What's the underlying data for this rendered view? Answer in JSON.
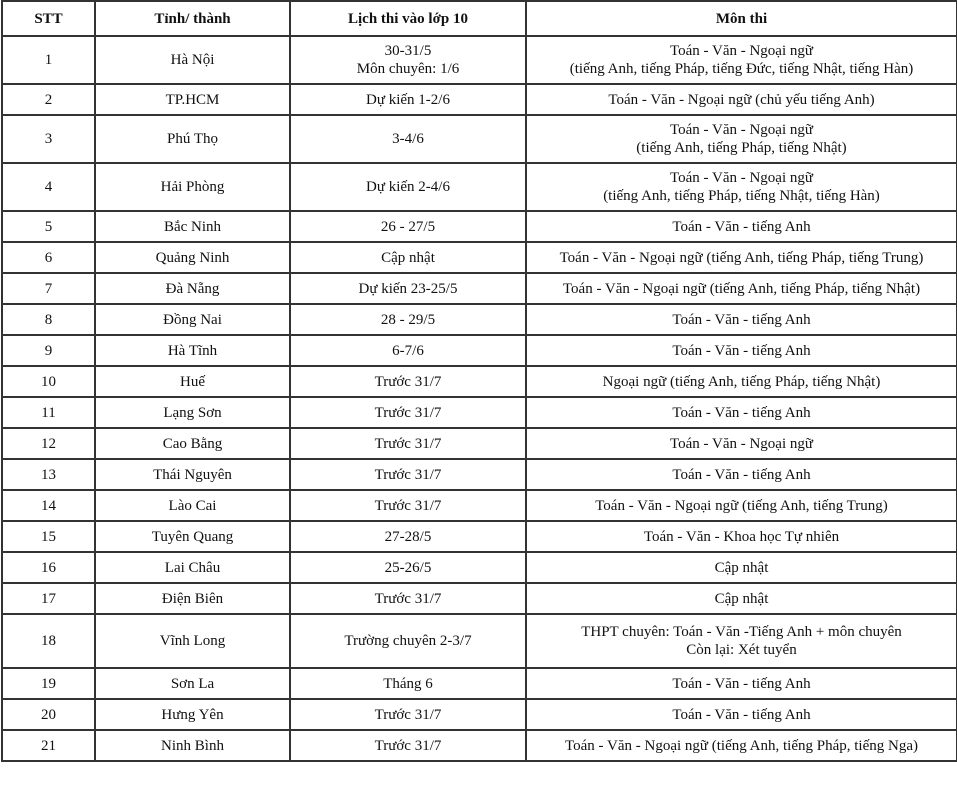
{
  "headers": [
    "STT",
    "Tỉnh/ thành",
    "Lịch thi vào lớp 10",
    "Môn thi"
  ],
  "rows": [
    {
      "stt": "1",
      "province": "Hà Nội",
      "schedule": [
        "30-31/5",
        "Môn chuyên: 1/6"
      ],
      "subjects": [
        "Toán - Văn - Ngoại ngữ",
        "(tiếng Anh, tiếng Pháp, tiếng Đức, tiếng Nhật, tiếng Hàn)"
      ]
    },
    {
      "stt": "2",
      "province": "TP.HCM",
      "schedule": [
        "Dự kiến 1-2/6"
      ],
      "subjects": [
        "Toán - Văn - Ngoại ngữ (chủ yếu tiếng Anh)"
      ]
    },
    {
      "stt": "3",
      "province": "Phú Thọ",
      "schedule": [
        "3-4/6"
      ],
      "subjects": [
        "Toán - Văn - Ngoại ngữ",
        "(tiếng Anh, tiếng Pháp, tiếng Nhật)"
      ]
    },
    {
      "stt": "4",
      "province": "Hải Phòng",
      "schedule": [
        "Dự kiến 2-4/6"
      ],
      "subjects": [
        "Toán - Văn - Ngoại ngữ",
        "(tiếng Anh, tiếng Pháp, tiếng Nhật, tiếng Hàn)"
      ]
    },
    {
      "stt": "5",
      "province": "Bắc Ninh",
      "schedule": [
        "26 - 27/5"
      ],
      "subjects": [
        "Toán - Văn - tiếng Anh"
      ]
    },
    {
      "stt": "6",
      "province": "Quảng Ninh",
      "schedule": [
        "Cập nhật"
      ],
      "subjects": [
        "Toán - Văn - Ngoại ngữ (tiếng Anh, tiếng Pháp, tiếng Trung)"
      ]
    },
    {
      "stt": "7",
      "province": "Đà Nẵng",
      "schedule": [
        "Dự kiến 23-25/5"
      ],
      "subjects": [
        "Toán - Văn - Ngoại ngữ (tiếng Anh, tiếng Pháp, tiếng Nhật)"
      ]
    },
    {
      "stt": "8",
      "province": "Đồng Nai",
      "schedule": [
        "28 - 29/5"
      ],
      "subjects": [
        "Toán - Văn - tiếng Anh"
      ]
    },
    {
      "stt": "9",
      "province": "Hà Tĩnh",
      "schedule": [
        "6-7/6"
      ],
      "subjects": [
        "Toán - Văn - tiếng Anh"
      ]
    },
    {
      "stt": "10",
      "province": "Huế",
      "schedule": [
        "Trước 31/7"
      ],
      "subjects": [
        "Ngoại ngữ (tiếng Anh, tiếng Pháp, tiếng Nhật)"
      ]
    },
    {
      "stt": "11",
      "province": "Lạng Sơn",
      "schedule": [
        "Trước 31/7"
      ],
      "subjects": [
        "Toán - Văn - tiếng Anh"
      ]
    },
    {
      "stt": "12",
      "province": "Cao Bằng",
      "schedule": [
        "Trước 31/7"
      ],
      "subjects": [
        "Toán - Văn - Ngoại ngữ"
      ]
    },
    {
      "stt": "13",
      "province": "Thái Nguyên",
      "schedule": [
        "Trước 31/7"
      ],
      "subjects": [
        "Toán - Văn - tiếng Anh"
      ]
    },
    {
      "stt": "14",
      "province": "Lào Cai",
      "schedule": [
        "Trước 31/7"
      ],
      "subjects": [
        "Toán - Văn - Ngoại ngữ (tiếng Anh, tiếng Trung)"
      ]
    },
    {
      "stt": "15",
      "province": "Tuyên Quang",
      "schedule": [
        "27-28/5"
      ],
      "subjects": [
        "Toán - Văn - Khoa học Tự nhiên"
      ]
    },
    {
      "stt": "16",
      "province": "Lai Châu",
      "schedule": [
        "25-26/5"
      ],
      "subjects": [
        "Cập nhật"
      ]
    },
    {
      "stt": "17",
      "province": "Điện Biên",
      "schedule": [
        "Trước 31/7"
      ],
      "subjects": [
        "Cập nhật"
      ]
    },
    {
      "stt": "18",
      "province": "Vĩnh Long",
      "schedule": [
        "Trường chuyên 2-3/7"
      ],
      "subjects": [
        "THPT chuyên: Toán - Văn -Tiếng Anh + môn chuyên",
        "Còn lại: Xét tuyển"
      ]
    },
    {
      "stt": "19",
      "province": "Sơn La",
      "schedule": [
        "Tháng 6"
      ],
      "subjects": [
        "Toán - Văn - tiếng Anh"
      ]
    },
    {
      "stt": "20",
      "province": "Hưng Yên",
      "schedule": [
        "Trước 31/7"
      ],
      "subjects": [
        "Toán - Văn - tiếng Anh"
      ]
    },
    {
      "stt": "21",
      "province": "Ninh Bình",
      "schedule": [
        "Trước 31/7"
      ],
      "subjects": [
        "Toán - Văn - Ngoại ngữ (tiếng Anh, tiếng Pháp, tiếng Nga)"
      ]
    }
  ]
}
